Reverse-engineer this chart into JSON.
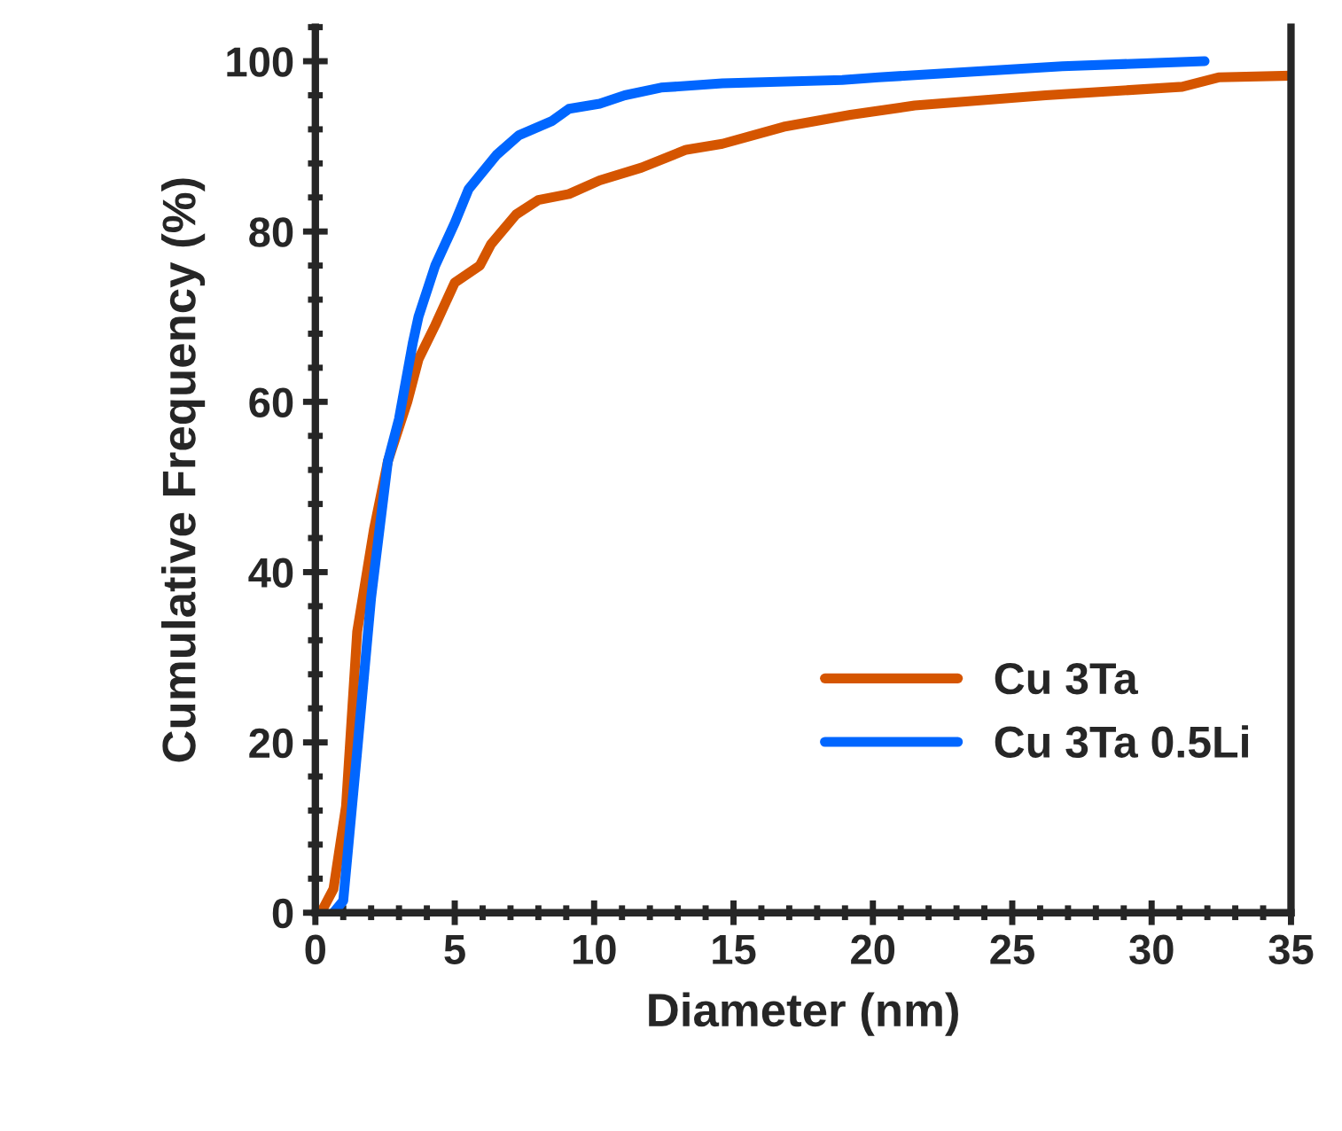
{
  "chart_data": {
    "type": "line",
    "xlabel": "Diameter (nm)",
    "ylabel": "Cumulative Frequency (%)",
    "xlim": [
      0,
      35
    ],
    "xticks": [
      0,
      5,
      10,
      15,
      20,
      25,
      30,
      35
    ],
    "ylim": [
      0,
      104
    ],
    "yticks": [
      0,
      20,
      40,
      60,
      80,
      100
    ],
    "grid": false,
    "legend": "bottom right",
    "marker": "none",
    "line_style": "solid",
    "series": [
      {
        "name": "Cu 3Ta",
        "color": "#d55500",
        "x": [
          0.2,
          0.65,
          1.1,
          1.5,
          2.1,
          2.6,
          3.3,
          3.7,
          4.3,
          5.0,
          5.9,
          6.3,
          7.2,
          8.0,
          9.1,
          10.2,
          11.7,
          13.3,
          14.6,
          16.8,
          19.2,
          21.5,
          26.2,
          31.1,
          32.4,
          35
        ],
        "values": [
          0,
          2.8,
          12.5,
          33,
          45,
          53,
          60,
          65,
          69,
          74,
          76,
          78.5,
          82,
          83.7,
          84.4,
          86,
          87.5,
          89.6,
          90.3,
          92.3,
          93.7,
          94.8,
          96,
          97,
          98.1,
          98.3
        ]
      },
      {
        "name": "Cu 3Ta 0.5Li",
        "color": "#0066ff",
        "x": [
          0.65,
          1.0,
          1.5,
          2.0,
          2.6,
          3.0,
          3.5,
          3.7,
          4.3,
          5.0,
          5.5,
          6.5,
          7.3,
          8.5,
          9.1,
          10.2,
          11.1,
          12.4,
          14.6,
          18.9,
          20.2,
          26.8,
          31.9
        ],
        "values": [
          0,
          1.4,
          19,
          37,
          53,
          58,
          67,
          70,
          76,
          81,
          85,
          89,
          91.3,
          93,
          94.4,
          95,
          96,
          96.9,
          97.4,
          97.8,
          98.1,
          99.4,
          100
        ]
      }
    ]
  }
}
